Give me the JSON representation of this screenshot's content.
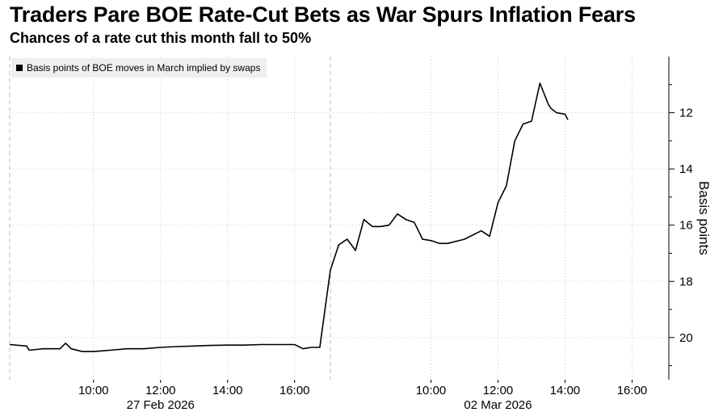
{
  "chart_data": {
    "type": "line",
    "title": "Traders Pare BOE Rate-Cut Bets as War Spurs Inflation Fears",
    "subtitle": "Chances of a rate cut this month fall to 50%",
    "legend": "Basis points of BOE moves in March implied by swaps",
    "ylabel": "Basis points",
    "ylim": [
      -21.5,
      -10.0
    ],
    "y_inverted": true,
    "y_ticks": [
      -12,
      -14,
      -16,
      -18,
      -20
    ],
    "y_tick_labels": [
      "12",
      "14",
      "16",
      "18",
      "20"
    ],
    "x_tick_labels": [
      {
        "label": "10:00",
        "date": "27 Feb 2026"
      },
      {
        "label": "12:00",
        "date": "27 Feb 2026"
      },
      {
        "label": "14:00",
        "date": "27 Feb 2026"
      },
      {
        "label": "16:00",
        "date": "27 Feb 2026"
      },
      {
        "label": "10:00",
        "date": "02 Mar 2026"
      },
      {
        "label": "12:00",
        "date": "02 Mar 2026"
      },
      {
        "label": "14:00",
        "date": "02 Mar 2026"
      },
      {
        "label": "16:00",
        "date": "02 Mar 2026"
      }
    ],
    "date_labels": [
      "27 Feb 2026",
      "02 Mar 2026"
    ],
    "series": [
      {
        "x": [
          "27 Feb 2026 07:30",
          "27 Feb 2026 08:00",
          "27 Feb 2026 08:05",
          "27 Feb 2026 08:30",
          "27 Feb 2026 09:00",
          "27 Feb 2026 09:10",
          "27 Feb 2026 09:20",
          "27 Feb 2026 09:40",
          "27 Feb 2026 10:00",
          "27 Feb 2026 10:30",
          "27 Feb 2026 11:00",
          "27 Feb 2026 11:30",
          "27 Feb 2026 12:00",
          "27 Feb 2026 12:30",
          "27 Feb 2026 13:00",
          "27 Feb 2026 13:30",
          "27 Feb 2026 14:00",
          "27 Feb 2026 14:30",
          "27 Feb 2026 15:00",
          "27 Feb 2026 15:30",
          "27 Feb 2026 16:00",
          "27 Feb 2026 16:15",
          "27 Feb 2026 16:30",
          "27 Feb 2026 16:45",
          "02 Mar 2026 07:00",
          "02 Mar 2026 07:15",
          "02 Mar 2026 07:30",
          "02 Mar 2026 07:45",
          "02 Mar 2026 08:00",
          "02 Mar 2026 08:15",
          "02 Mar 2026 08:30",
          "02 Mar 2026 08:45",
          "02 Mar 2026 09:00",
          "02 Mar 2026 09:15",
          "02 Mar 2026 09:30",
          "02 Mar 2026 09:45",
          "02 Mar 2026 10:00",
          "02 Mar 2026 10:15",
          "02 Mar 2026 10:30",
          "02 Mar 2026 11:00",
          "02 Mar 2026 11:30",
          "02 Mar 2026 11:45",
          "02 Mar 2026 12:00",
          "02 Mar 2026 12:15",
          "02 Mar 2026 12:30",
          "02 Mar 2026 12:45",
          "02 Mar 2026 13:00",
          "02 Mar 2026 13:15",
          "02 Mar 2026 13:30",
          "02 Mar 2026 13:35",
          "02 Mar 2026 13:45",
          "02 Mar 2026 14:00",
          "02 Mar 2026 14:05"
        ],
        "values": [
          -20.25,
          -20.3,
          -20.45,
          -20.4,
          -20.4,
          -20.2,
          -20.4,
          -20.5,
          -20.5,
          -20.45,
          -20.4,
          -20.4,
          -20.35,
          -20.32,
          -20.3,
          -20.28,
          -20.27,
          -20.27,
          -20.25,
          -20.25,
          -20.25,
          -20.4,
          -20.35,
          -20.35,
          -17.6,
          -16.7,
          -16.5,
          -16.9,
          -15.8,
          -16.05,
          -16.05,
          -16.0,
          -15.6,
          -15.8,
          -15.9,
          -16.5,
          -16.55,
          -16.65,
          -16.65,
          -16.5,
          -16.2,
          -16.4,
          -15.2,
          -14.6,
          -13.0,
          -12.4,
          -12.3,
          -10.95,
          -11.7,
          -11.85,
          -12.0,
          -12.05,
          -12.25
        ]
      }
    ]
  }
}
